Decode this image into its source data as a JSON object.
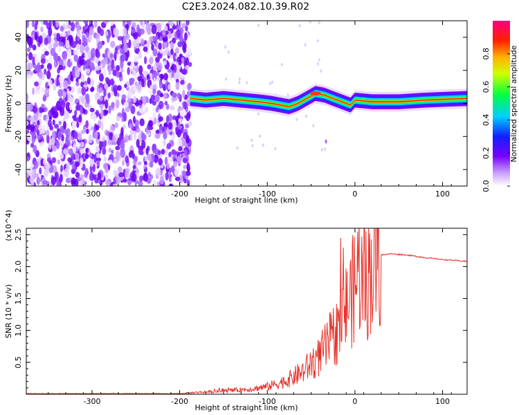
{
  "title": "C2E3.2024.082.10.39.R02",
  "colors": {
    "line": "#e8322a",
    "axis": "#000000"
  },
  "chart_data": [
    {
      "type": "heatmap",
      "title": "C2E3.2024.082.10.39.R02",
      "xlabel": "Height of straight line (km)",
      "ylabel": "Frequency (Hz)",
      "xlim": [
        -375,
        128
      ],
      "ylim": [
        -50,
        50
      ],
      "x_ticks": [
        "-300",
        "-200",
        "-100",
        "0",
        "100"
      ],
      "y_ticks": [
        "-40",
        "-20",
        "0",
        "20",
        "40"
      ],
      "colorbar": {
        "label": "Normalized spectral amplitude",
        "range": [
          0.0,
          1.0
        ],
        "ticks": [
          "0.0",
          "0.2",
          "0.4",
          "0.6",
          "0.8"
        ],
        "colormap": "rainbow (white-violet-blue-cyan-green-yellow-orange-red-magenta)"
      },
      "description_points": {
        "noise_region_x": [
          -375,
          -188
        ],
        "ridge": {
          "x": [
            -188,
            -170,
            -150,
            -130,
            -110,
            -95,
            -85,
            -75,
            -65,
            -55,
            -45,
            -35,
            -25,
            -15,
            -5,
            0,
            20,
            50,
            80,
            128
          ],
          "y": [
            3,
            2,
            3,
            2,
            1,
            0,
            -1,
            -2,
            0,
            3,
            6,
            5,
            3,
            1,
            -1,
            2,
            1,
            1,
            2,
            3
          ]
        }
      }
    },
    {
      "type": "line",
      "xlabel": "Height of straight line (km)",
      "ylabel": "SNR (10 * v/v)",
      "y_multiplier": "(x10^4)",
      "xlim": [
        -375,
        128
      ],
      "ylim": [
        0,
        2.6
      ],
      "x_ticks": [
        "-300",
        "-200",
        "-100",
        "0",
        "100"
      ],
      "y_ticks": [
        "0.5",
        "1.0",
        "1.5",
        "2.0",
        "2.5"
      ],
      "series": [
        {
          "x": [
            -375,
            -200,
            -180,
            -150,
            -120,
            -100,
            -80,
            -60,
            -40,
            -30,
            -20,
            -10,
            0,
            5,
            10,
            20,
            30,
            40,
            60,
            80,
            100,
            128
          ],
          "y": [
            0.01,
            0.01,
            0.03,
            0.05,
            0.08,
            0.12,
            0.2,
            0.35,
            0.6,
            0.8,
            1.0,
            1.35,
            1.7,
            2.0,
            1.6,
            2.05,
            2.18,
            2.2,
            2.18,
            2.14,
            2.11,
            2.08
          ]
        }
      ]
    }
  ]
}
